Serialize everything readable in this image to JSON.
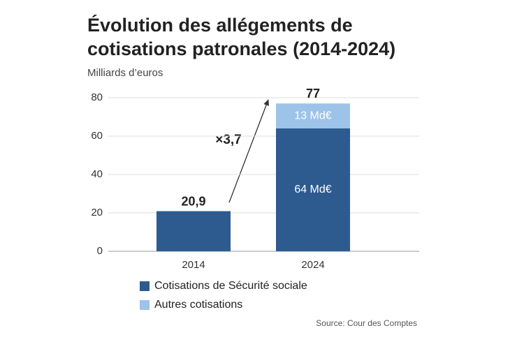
{
  "chart_data": {
    "type": "bar",
    "stacked": true,
    "title": [
      "Évolution des allégements de",
      "cotisations patronales (2014-2024)"
    ],
    "subtitle": "Milliards d’euros",
    "source": "Source: Cour des Comptes",
    "annotation": "×3,7",
    "categories": [
      "2014",
      "2024"
    ],
    "series": [
      {
        "name": "Cotisations de Sécurité sociale",
        "color": "#2e5b8f",
        "values": [
          20.9,
          64
        ],
        "value_labels": [
          null,
          "64 Md€"
        ]
      },
      {
        "name": "Autres cotisations",
        "color": "#9dc3e8",
        "values": [
          null,
          13
        ],
        "value_labels": [
          null,
          "13 Md€"
        ]
      }
    ],
    "totals": [
      20.9,
      77
    ],
    "total_labels": [
      "20,9",
      "77"
    ],
    "ylim": [
      0,
      80
    ],
    "yticks": [
      0,
      20,
      40,
      60,
      80
    ],
    "grid": true
  }
}
